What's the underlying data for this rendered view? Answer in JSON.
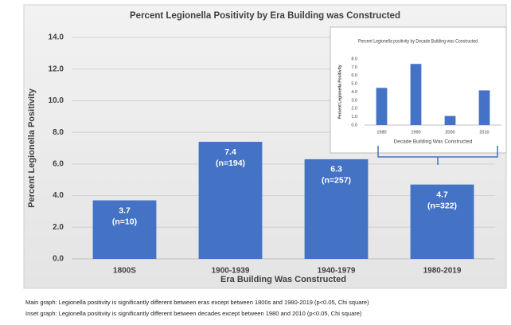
{
  "chart_data": [
    {
      "type": "bar",
      "title": "Percent Legionella Positivity by Era Building was Constructed",
      "x_label": "Era Building Was Constructed",
      "y_label": "Percent Legionella Positivity",
      "categories": [
        "1800S",
        "1900-1939",
        "1940-1979",
        "1980-2019"
      ],
      "values": [
        3.7,
        7.4,
        6.3,
        4.7
      ],
      "n_labels": [
        "(n=10)",
        "(n=194)",
        "(n=257)",
        "(n=322)"
      ],
      "color": "#4472c4",
      "ylim": [
        0,
        14
      ],
      "yticks": [
        {
          "value": 0,
          "label": "0.0"
        },
        {
          "value": 2,
          "label": "2.0"
        },
        {
          "value": 4,
          "label": "4.0"
        },
        {
          "value": 6,
          "label": "6.0"
        },
        {
          "value": 8,
          "label": "8.0"
        },
        {
          "value": 10,
          "label": "10.0"
        },
        {
          "value": 12,
          "label": "12.0"
        },
        {
          "value": 14,
          "label": "14.0"
        }
      ],
      "grid": true
    },
    {
      "type": "bar",
      "title": "Percent Legionella positivity by Decade Building was Constructed",
      "x_label": "Decade Building Was Constructed",
      "y_label": "Percent Legionella Positivity",
      "categories": [
        "1980",
        "1990",
        "2000",
        "2010"
      ],
      "values": [
        4.5,
        7.4,
        1.1,
        4.2
      ],
      "color": "#4472c4",
      "ylim": [
        0,
        8
      ],
      "yticks": [
        {
          "value": 0,
          "label": "0.0"
        },
        {
          "value": 1,
          "label": "1.0"
        },
        {
          "value": 2,
          "label": "2.0"
        },
        {
          "value": 3,
          "label": "3.0"
        },
        {
          "value": 4,
          "label": "4.0"
        },
        {
          "value": 5,
          "label": "5.0"
        },
        {
          "value": 6,
          "label": "6.0"
        },
        {
          "value": 7,
          "label": "7.0"
        },
        {
          "value": 8,
          "label": "8.0"
        }
      ],
      "grid": false
    }
  ],
  "caption": [
    "Main graph: Legionella positivity is significantly different between eras except between 1800s and 1980-2019 (p<0.05, Chi square)",
    "Inset graph: Legionella positivity is significantly different between decades except between 1980 and 2010 (p<0.05, Chi square)"
  ]
}
